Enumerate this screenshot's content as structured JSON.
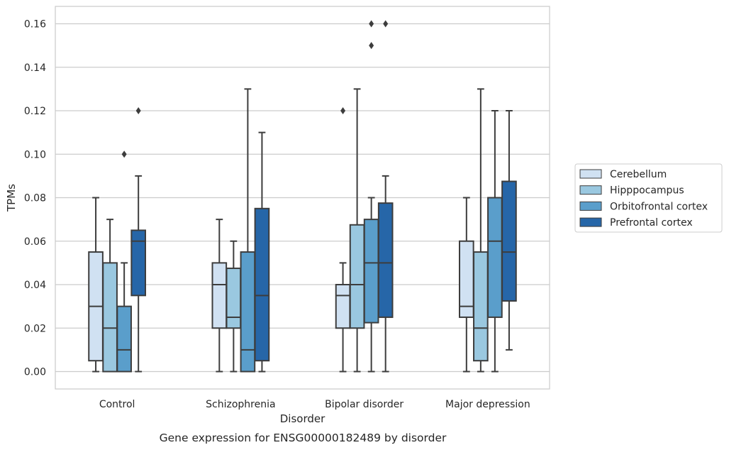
{
  "chart_data": {
    "type": "box",
    "title": "",
    "caption": "Gene expression for ENSG00000182489 by disorder",
    "xlabel": "Disorder",
    "ylabel": "TPMs",
    "ylim": [
      -0.008,
      0.168
    ],
    "yticks": [
      0.0,
      0.02,
      0.04,
      0.06,
      0.08,
      0.1,
      0.12,
      0.14,
      0.16
    ],
    "ytick_labels": [
      "0.00",
      "0.02",
      "0.04",
      "0.06",
      "0.08",
      "0.10",
      "0.12",
      "0.14",
      "0.16"
    ],
    "grid": "horizontal",
    "legend_position": "right",
    "categories": [
      "Control",
      "Schizophrenia",
      "Bipolar disorder",
      "Major depression"
    ],
    "series": [
      {
        "name": "Cerebellum",
        "color": "#d0e1f2",
        "boxes": [
          {
            "whislo": 0.0,
            "q1": 0.005,
            "med": 0.03,
            "q3": 0.055,
            "whishi": 0.08,
            "fliers": []
          },
          {
            "whislo": 0.0,
            "q1": 0.02,
            "med": 0.04,
            "q3": 0.05,
            "whishi": 0.07,
            "fliers": []
          },
          {
            "whislo": 0.0,
            "q1": 0.02,
            "med": 0.035,
            "q3": 0.04,
            "whishi": 0.05,
            "fliers": [
              0.12
            ]
          },
          {
            "whislo": 0.0,
            "q1": 0.025,
            "med": 0.03,
            "q3": 0.06,
            "whishi": 0.08,
            "fliers": []
          }
        ]
      },
      {
        "name": "Hipppocampus",
        "color": "#9ac8e0",
        "boxes": [
          {
            "whislo": 0.0,
            "q1": 0.0,
            "med": 0.02,
            "q3": 0.05,
            "whishi": 0.07,
            "fliers": []
          },
          {
            "whislo": 0.0,
            "q1": 0.02,
            "med": 0.025,
            "q3": 0.0475,
            "whishi": 0.06,
            "fliers": []
          },
          {
            "whislo": 0.0,
            "q1": 0.02,
            "med": 0.04,
            "q3": 0.0675,
            "whishi": 0.13,
            "fliers": []
          },
          {
            "whislo": 0.0,
            "q1": 0.005,
            "med": 0.02,
            "q3": 0.055,
            "whishi": 0.13,
            "fliers": []
          }
        ]
      },
      {
        "name": "Orbitofrontal cortex",
        "color": "#5a9ecb",
        "boxes": [
          {
            "whislo": 0.0,
            "q1": 0.0,
            "med": 0.01,
            "q3": 0.03,
            "whishi": 0.05,
            "fliers": [
              0.1
            ]
          },
          {
            "whislo": 0.0,
            "q1": 0.0,
            "med": 0.01,
            "q3": 0.055,
            "whishi": 0.13,
            "fliers": []
          },
          {
            "whislo": 0.0,
            "q1": 0.0225,
            "med": 0.05,
            "q3": 0.07,
            "whishi": 0.08,
            "fliers": [
              0.15,
              0.16
            ]
          },
          {
            "whislo": 0.0,
            "q1": 0.025,
            "med": 0.06,
            "q3": 0.08,
            "whishi": 0.12,
            "fliers": []
          }
        ]
      },
      {
        "name": "Prefrontal cortex",
        "color": "#2666a8",
        "boxes": [
          {
            "whislo": 0.0,
            "q1": 0.035,
            "med": 0.06,
            "q3": 0.065,
            "whishi": 0.09,
            "fliers": [
              0.12
            ]
          },
          {
            "whislo": 0.0,
            "q1": 0.005,
            "med": 0.035,
            "q3": 0.075,
            "whishi": 0.11,
            "fliers": []
          },
          {
            "whislo": 0.0,
            "q1": 0.025,
            "med": 0.05,
            "q3": 0.0775,
            "whishi": 0.09,
            "fliers": [
              0.16
            ]
          },
          {
            "whislo": 0.01,
            "q1": 0.0325,
            "med": 0.055,
            "q3": 0.0875,
            "whishi": 0.12,
            "fliers": []
          }
        ]
      }
    ]
  }
}
